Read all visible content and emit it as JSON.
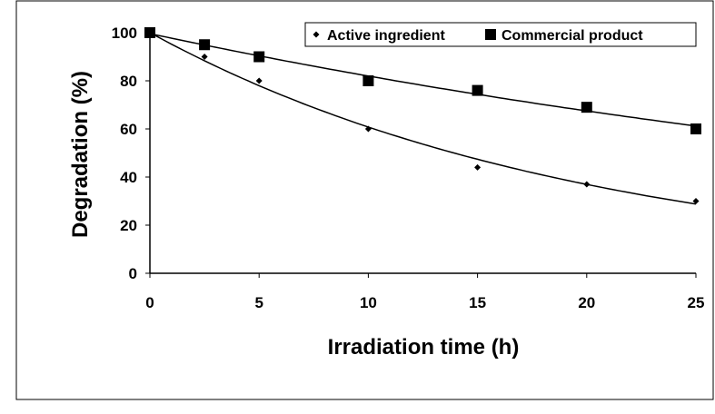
{
  "chart_data": {
    "type": "scatter",
    "x_label": "Irradiation time (h)",
    "y_label": "Degradation (%)",
    "x": [
      0,
      2.5,
      5,
      10,
      15,
      20,
      25
    ],
    "series": [
      {
        "name": "Active ingredient",
        "color": "#000000",
        "marker": "diamond",
        "values": [
          100,
          90,
          80,
          60,
          44,
          37,
          30
        ]
      },
      {
        "name": "Commercial product",
        "color": "#000000",
        "marker": "square",
        "values": [
          100,
          95,
          90,
          80,
          76,
          69,
          60
        ]
      }
    ],
    "xlim": [
      0,
      25
    ],
    "xticks": [
      0,
      5,
      10,
      15,
      20,
      25
    ],
    "ylim": [
      0,
      100
    ],
    "yticks": [
      0,
      20,
      40,
      60,
      80,
      100
    ],
    "trendline": "exponential",
    "legend": "top-right"
  }
}
